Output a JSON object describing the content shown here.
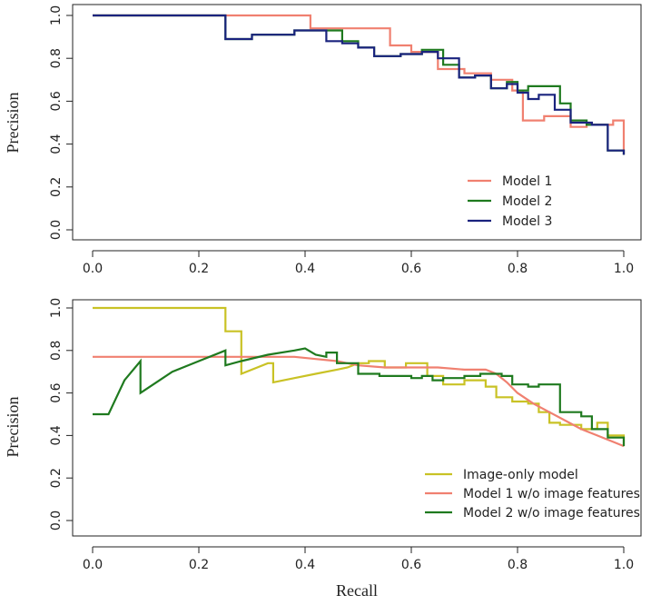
{
  "chart_data": [
    {
      "type": "line",
      "step": true,
      "ylabel": "Precision",
      "xlabel": "",
      "xlim": [
        0,
        1
      ],
      "ylim": [
        0,
        1
      ],
      "x_ticks": [
        "0.0",
        "0.2",
        "0.4",
        "0.6",
        "0.8",
        "1.0"
      ],
      "y_ticks": [
        "0.0",
        "0.2",
        "0.4",
        "0.6",
        "0.8",
        "1.0"
      ],
      "grid": false,
      "legend_position": "bottom-right",
      "series": [
        {
          "name": "Model 1",
          "color": "#f08070",
          "points": [
            [
              0.0,
              1.0
            ],
            [
              0.41,
              1.0
            ],
            [
              0.41,
              0.94
            ],
            [
              0.56,
              0.94
            ],
            [
              0.56,
              0.86
            ],
            [
              0.6,
              0.86
            ],
            [
              0.6,
              0.83
            ],
            [
              0.65,
              0.83
            ],
            [
              0.65,
              0.75
            ],
            [
              0.7,
              0.75
            ],
            [
              0.7,
              0.73
            ],
            [
              0.75,
              0.73
            ],
            [
              0.75,
              0.7
            ],
            [
              0.79,
              0.7
            ],
            [
              0.79,
              0.65
            ],
            [
              0.81,
              0.65
            ],
            [
              0.81,
              0.51
            ],
            [
              0.85,
              0.51
            ],
            [
              0.85,
              0.53
            ],
            [
              0.9,
              0.53
            ],
            [
              0.9,
              0.48
            ],
            [
              0.93,
              0.48
            ],
            [
              0.93,
              0.49
            ],
            [
              0.98,
              0.49
            ],
            [
              0.98,
              0.51
            ],
            [
              1.0,
              0.51
            ],
            [
              1.0,
              0.35
            ]
          ]
        },
        {
          "name": "Model 2",
          "color": "#1f7a1f",
          "points": [
            [
              0.0,
              1.0
            ],
            [
              0.25,
              1.0
            ],
            [
              0.25,
              0.89
            ],
            [
              0.3,
              0.89
            ],
            [
              0.3,
              0.91
            ],
            [
              0.38,
              0.91
            ],
            [
              0.38,
              0.93
            ],
            [
              0.47,
              0.93
            ],
            [
              0.47,
              0.88
            ],
            [
              0.5,
              0.88
            ],
            [
              0.5,
              0.85
            ],
            [
              0.53,
              0.85
            ],
            [
              0.53,
              0.81
            ],
            [
              0.58,
              0.81
            ],
            [
              0.58,
              0.82
            ],
            [
              0.62,
              0.82
            ],
            [
              0.62,
              0.84
            ],
            [
              0.66,
              0.84
            ],
            [
              0.66,
              0.77
            ],
            [
              0.69,
              0.77
            ],
            [
              0.69,
              0.71
            ],
            [
              0.72,
              0.71
            ],
            [
              0.72,
              0.72
            ],
            [
              0.75,
              0.72
            ],
            [
              0.75,
              0.66
            ],
            [
              0.78,
              0.66
            ],
            [
              0.78,
              0.69
            ],
            [
              0.8,
              0.69
            ],
            [
              0.8,
              0.65
            ],
            [
              0.82,
              0.65
            ],
            [
              0.82,
              0.67
            ],
            [
              0.88,
              0.67
            ],
            [
              0.88,
              0.59
            ],
            [
              0.9,
              0.59
            ],
            [
              0.9,
              0.51
            ],
            [
              0.93,
              0.51
            ],
            [
              0.93,
              0.49
            ],
            [
              0.97,
              0.49
            ],
            [
              0.97,
              0.37
            ],
            [
              1.0,
              0.37
            ],
            [
              1.0,
              0.35
            ]
          ]
        },
        {
          "name": "Model 3",
          "color": "#1a237e",
          "points": [
            [
              0.0,
              1.0
            ],
            [
              0.25,
              1.0
            ],
            [
              0.25,
              0.89
            ],
            [
              0.3,
              0.89
            ],
            [
              0.3,
              0.91
            ],
            [
              0.38,
              0.91
            ],
            [
              0.38,
              0.93
            ],
            [
              0.44,
              0.93
            ],
            [
              0.44,
              0.88
            ],
            [
              0.47,
              0.88
            ],
            [
              0.47,
              0.87
            ],
            [
              0.5,
              0.87
            ],
            [
              0.5,
              0.85
            ],
            [
              0.53,
              0.85
            ],
            [
              0.53,
              0.81
            ],
            [
              0.58,
              0.81
            ],
            [
              0.58,
              0.82
            ],
            [
              0.62,
              0.82
            ],
            [
              0.62,
              0.83
            ],
            [
              0.65,
              0.83
            ],
            [
              0.65,
              0.8
            ],
            [
              0.69,
              0.8
            ],
            [
              0.69,
              0.71
            ],
            [
              0.72,
              0.71
            ],
            [
              0.72,
              0.72
            ],
            [
              0.75,
              0.72
            ],
            [
              0.75,
              0.66
            ],
            [
              0.78,
              0.66
            ],
            [
              0.78,
              0.68
            ],
            [
              0.8,
              0.68
            ],
            [
              0.8,
              0.64
            ],
            [
              0.82,
              0.64
            ],
            [
              0.82,
              0.61
            ],
            [
              0.84,
              0.61
            ],
            [
              0.84,
              0.63
            ],
            [
              0.87,
              0.63
            ],
            [
              0.87,
              0.56
            ],
            [
              0.9,
              0.56
            ],
            [
              0.9,
              0.5
            ],
            [
              0.94,
              0.5
            ],
            [
              0.94,
              0.49
            ],
            [
              0.97,
              0.49
            ],
            [
              0.97,
              0.37
            ],
            [
              1.0,
              0.37
            ],
            [
              1.0,
              0.35
            ]
          ]
        }
      ]
    },
    {
      "type": "line",
      "step": false,
      "ylabel": "Precision",
      "xlabel": "Recall",
      "xlim": [
        0,
        1
      ],
      "ylim": [
        0,
        1
      ],
      "x_ticks": [
        "0.0",
        "0.2",
        "0.4",
        "0.6",
        "0.8",
        "1.0"
      ],
      "y_ticks": [
        "0.0",
        "0.2",
        "0.4",
        "0.6",
        "0.8",
        "1.0"
      ],
      "grid": false,
      "legend_position": "bottom-right",
      "series": [
        {
          "name": "Image-only model",
          "color": "#c9c225",
          "points": [
            [
              0.0,
              1.0
            ],
            [
              0.25,
              1.0
            ],
            [
              0.25,
              0.89
            ],
            [
              0.28,
              0.89
            ],
            [
              0.28,
              0.69
            ],
            [
              0.33,
              0.74
            ],
            [
              0.34,
              0.74
            ],
            [
              0.34,
              0.65
            ],
            [
              0.38,
              0.67
            ],
            [
              0.42,
              0.69
            ],
            [
              0.46,
              0.71
            ],
            [
              0.48,
              0.72
            ],
            [
              0.5,
              0.74
            ],
            [
              0.52,
              0.74
            ],
            [
              0.52,
              0.75
            ],
            [
              0.55,
              0.75
            ],
            [
              0.55,
              0.72
            ],
            [
              0.59,
              0.72
            ],
            [
              0.59,
              0.74
            ],
            [
              0.63,
              0.74
            ],
            [
              0.63,
              0.68
            ],
            [
              0.66,
              0.68
            ],
            [
              0.66,
              0.64
            ],
            [
              0.7,
              0.64
            ],
            [
              0.7,
              0.66
            ],
            [
              0.74,
              0.66
            ],
            [
              0.74,
              0.63
            ],
            [
              0.76,
              0.63
            ],
            [
              0.76,
              0.58
            ],
            [
              0.79,
              0.58
            ],
            [
              0.79,
              0.56
            ],
            [
              0.82,
              0.56
            ],
            [
              0.82,
              0.55
            ],
            [
              0.84,
              0.55
            ],
            [
              0.84,
              0.51
            ],
            [
              0.86,
              0.51
            ],
            [
              0.86,
              0.46
            ],
            [
              0.88,
              0.46
            ],
            [
              0.88,
              0.45
            ],
            [
              0.92,
              0.45
            ],
            [
              0.92,
              0.43
            ],
            [
              0.95,
              0.43
            ],
            [
              0.95,
              0.46
            ],
            [
              0.97,
              0.46
            ],
            [
              0.97,
              0.4
            ],
            [
              1.0,
              0.4
            ],
            [
              1.0,
              0.35
            ]
          ]
        },
        {
          "name": "Model 1 w/o image features",
          "color": "#f08070",
          "points": [
            [
              0.0,
              0.77
            ],
            [
              0.3,
              0.77
            ],
            [
              0.38,
              0.77
            ],
            [
              0.42,
              0.76
            ],
            [
              0.46,
              0.75
            ],
            [
              0.5,
              0.73
            ],
            [
              0.55,
              0.72
            ],
            [
              0.6,
              0.72
            ],
            [
              0.65,
              0.72
            ],
            [
              0.7,
              0.71
            ],
            [
              0.74,
              0.71
            ],
            [
              0.76,
              0.69
            ],
            [
              0.78,
              0.65
            ],
            [
              0.8,
              0.6
            ],
            [
              0.83,
              0.55
            ],
            [
              0.86,
              0.51
            ],
            [
              0.89,
              0.47
            ],
            [
              0.92,
              0.43
            ],
            [
              0.95,
              0.4
            ],
            [
              0.98,
              0.37
            ],
            [
              1.0,
              0.35
            ]
          ]
        },
        {
          "name": "Model 2 w/o image features",
          "color": "#1f7a1f",
          "points": [
            [
              0.0,
              0.5
            ],
            [
              0.03,
              0.5
            ],
            [
              0.06,
              0.66
            ],
            [
              0.09,
              0.75
            ],
            [
              0.09,
              0.6
            ],
            [
              0.12,
              0.65
            ],
            [
              0.15,
              0.7
            ],
            [
              0.2,
              0.75
            ],
            [
              0.25,
              0.8
            ],
            [
              0.25,
              0.73
            ],
            [
              0.28,
              0.75
            ],
            [
              0.33,
              0.78
            ],
            [
              0.38,
              0.8
            ],
            [
              0.4,
              0.81
            ],
            [
              0.42,
              0.78
            ],
            [
              0.44,
              0.77
            ],
            [
              0.44,
              0.79
            ],
            [
              0.46,
              0.79
            ],
            [
              0.46,
              0.74
            ],
            [
              0.5,
              0.74
            ],
            [
              0.5,
              0.69
            ],
            [
              0.54,
              0.69
            ],
            [
              0.54,
              0.68
            ],
            [
              0.6,
              0.68
            ],
            [
              0.6,
              0.67
            ],
            [
              0.62,
              0.67
            ],
            [
              0.62,
              0.68
            ],
            [
              0.64,
              0.68
            ],
            [
              0.64,
              0.66
            ],
            [
              0.66,
              0.66
            ],
            [
              0.66,
              0.67
            ],
            [
              0.7,
              0.67
            ],
            [
              0.7,
              0.68
            ],
            [
              0.73,
              0.68
            ],
            [
              0.73,
              0.69
            ],
            [
              0.77,
              0.69
            ],
            [
              0.77,
              0.68
            ],
            [
              0.79,
              0.68
            ],
            [
              0.79,
              0.64
            ],
            [
              0.82,
              0.64
            ],
            [
              0.82,
              0.63
            ],
            [
              0.84,
              0.63
            ],
            [
              0.84,
              0.64
            ],
            [
              0.88,
              0.64
            ],
            [
              0.88,
              0.51
            ],
            [
              0.92,
              0.51
            ],
            [
              0.92,
              0.49
            ],
            [
              0.94,
              0.49
            ],
            [
              0.94,
              0.43
            ],
            [
              0.97,
              0.43
            ],
            [
              0.97,
              0.39
            ],
            [
              1.0,
              0.39
            ],
            [
              1.0,
              0.35
            ]
          ]
        }
      ]
    }
  ]
}
